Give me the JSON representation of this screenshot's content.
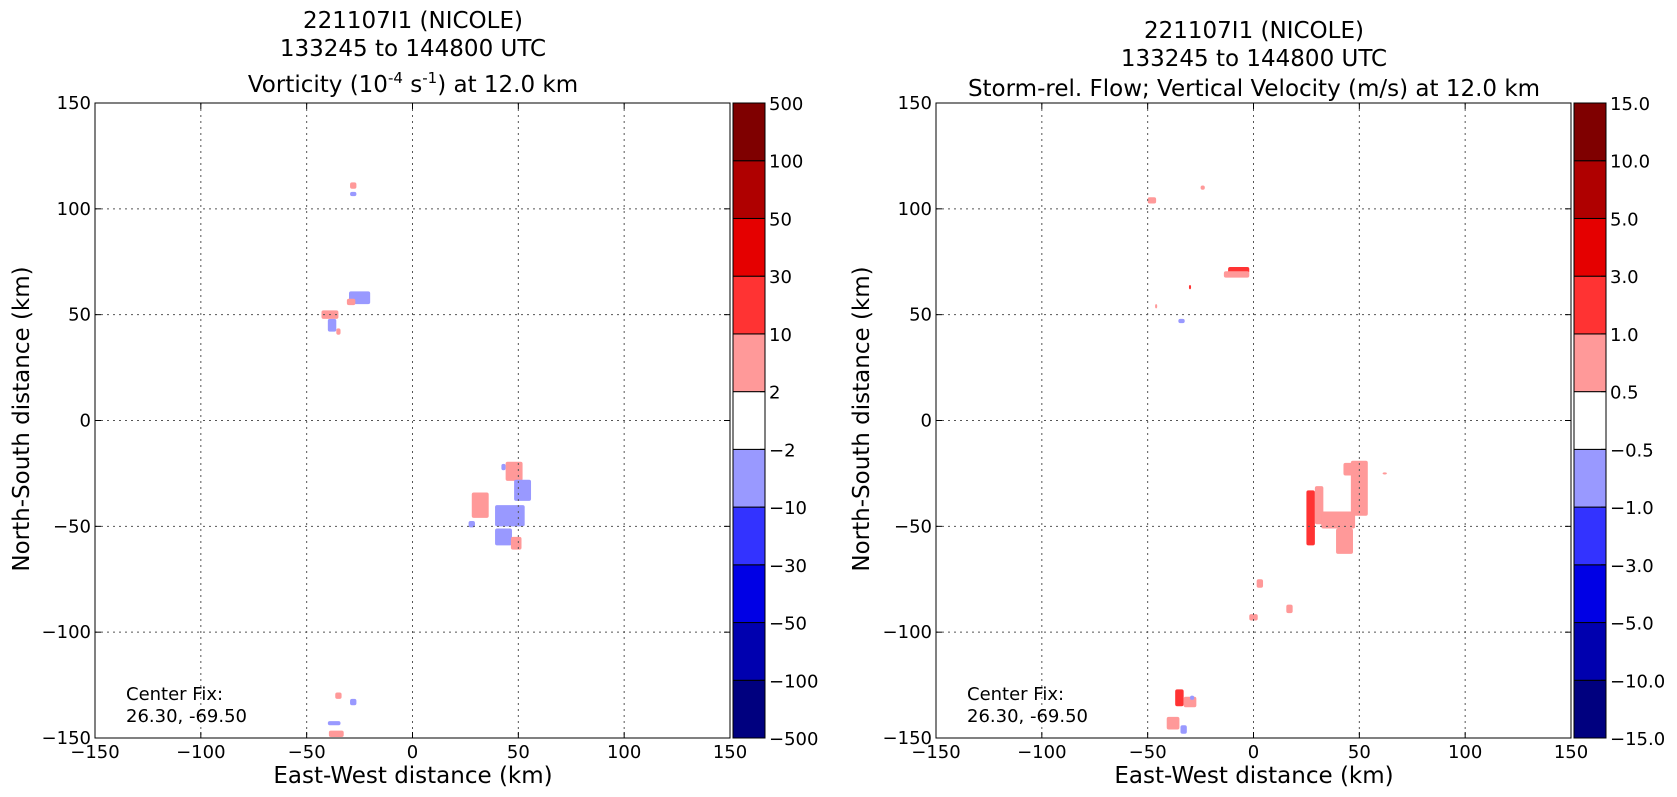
{
  "colorbar_colors": [
    "#00007f",
    "#0000af",
    "#0000e5",
    "#3333ff",
    "#9999ff",
    "#ffffff",
    "#ff9999",
    "#ff3333",
    "#e50000",
    "#af0000",
    "#7f0000"
  ],
  "panels": [
    {
      "id": "vorticity",
      "title_line1": "221107I1 (NICOLE)",
      "title_line2": "133245 to 144800 UTC",
      "title_line3_pre": "Vorticity (10",
      "title_line3_sup1": "-4",
      "title_line3_mid": " s",
      "title_line3_sup2": "-1",
      "title_line3_post": ") at 12.0 km",
      "xlabel": "East-West distance (km)",
      "ylabel": "North-South distance (km)",
      "center_fix_label": "Center Fix:",
      "center_fix_value": "26.30, -69.50",
      "colorbar_labels": [
        "500",
        "100",
        "50",
        "30",
        "10",
        "2",
        "−2",
        "−10",
        "−30",
        "−50",
        "−100",
        "−500"
      ]
    },
    {
      "id": "vertical-velocity",
      "title_line1": "221107I1 (NICOLE)",
      "title_line2": "133245 to 144800 UTC",
      "title_line3": "Storm-rel. Flow; Vertical Velocity (m/s) at 12.0 km",
      "xlabel": "East-West distance (km)",
      "ylabel": "North-South distance (km)",
      "center_fix_label": "Center Fix:",
      "center_fix_value": "26.30, -69.50",
      "colorbar_labels": [
        "15.0",
        "10.0",
        "5.0",
        "3.0",
        "1.0",
        "0.5",
        "−0.5",
        "−1.0",
        "−3.0",
        "−5.0",
        "−10.0",
        "−15.0"
      ]
    }
  ],
  "chart_data": [
    {
      "type": "heatmap",
      "title": "221107I1 (NICOLE) 133245 to 144800 UTC Vorticity (10^-4 s^-1) at 12.0 km",
      "xlabel": "East-West distance (km)",
      "ylabel": "North-South distance (km)",
      "xlim": [
        -150,
        150
      ],
      "ylim": [
        -150,
        150
      ],
      "xticks": [
        "−150",
        "−100",
        "−50",
        "0",
        "50",
        "100",
        "150"
      ],
      "yticks": [
        "−150",
        "−100",
        "−50",
        "0",
        "50",
        "100",
        "150"
      ],
      "grid": true,
      "colorbar_levels": [
        -500,
        -100,
        -50,
        -30,
        -10,
        -2,
        2,
        10,
        30,
        50,
        100,
        500
      ],
      "features": [
        {
          "x": -28,
          "y": 111,
          "w": 3,
          "h": 3,
          "level": 2
        },
        {
          "x": -28,
          "y": 107,
          "w": 3,
          "h": 2,
          "level": -2
        },
        {
          "x": -25,
          "y": 58,
          "w": 10,
          "h": 6,
          "level": -2
        },
        {
          "x": -29,
          "y": 56,
          "w": 4,
          "h": 3,
          "level": 2
        },
        {
          "x": -39,
          "y": 50,
          "w": 8,
          "h": 4,
          "level": 2
        },
        {
          "x": -38,
          "y": 45,
          "w": 4,
          "h": 6,
          "level": -2
        },
        {
          "x": -35,
          "y": 42,
          "w": 2,
          "h": 3,
          "level": 2
        },
        {
          "x": 48,
          "y": -24,
          "w": 8,
          "h": 9,
          "level": 2
        },
        {
          "x": 52,
          "y": -33,
          "w": 8,
          "h": 10,
          "level": -2
        },
        {
          "x": 32,
          "y": -40,
          "w": 8,
          "h": 12,
          "level": 2
        },
        {
          "x": 46,
          "y": -45,
          "w": 14,
          "h": 10,
          "level": -2
        },
        {
          "x": 43,
          "y": -55,
          "w": 8,
          "h": 8,
          "level": -2
        },
        {
          "x": 49,
          "y": -58,
          "w": 5,
          "h": 6,
          "level": 2
        },
        {
          "x": 28,
          "y": -49,
          "w": 3,
          "h": 3,
          "level": -2
        },
        {
          "x": 43,
          "y": -22,
          "w": 2,
          "h": 3,
          "level": -2
        },
        {
          "x": -35,
          "y": -130,
          "w": 3,
          "h": 3,
          "level": 2
        },
        {
          "x": -28,
          "y": -133,
          "w": 3,
          "h": 3,
          "level": -2
        },
        {
          "x": -37,
          "y": -143,
          "w": 6,
          "h": 2,
          "level": -2
        },
        {
          "x": -36,
          "y": -148,
          "w": 7,
          "h": 3,
          "level": 2
        }
      ]
    },
    {
      "type": "heatmap",
      "title": "221107I1 (NICOLE) 133245 to 144800 UTC Storm-rel. Flow; Vertical Velocity (m/s) at 12.0 km",
      "xlabel": "East-West distance (km)",
      "ylabel": "North-South distance (km)",
      "xlim": [
        -150,
        150
      ],
      "ylim": [
        -150,
        150
      ],
      "xticks": [
        "−150",
        "−100",
        "−50",
        "0",
        "50",
        "100",
        "150"
      ],
      "yticks": [
        "−150",
        "−100",
        "−50",
        "0",
        "50",
        "100",
        "150"
      ],
      "grid": true,
      "colorbar_levels": [
        -15.0,
        -10.0,
        -5.0,
        -3.0,
        -1.0,
        -0.5,
        0.5,
        1.0,
        3.0,
        5.0,
        10.0,
        15.0
      ],
      "features": [
        {
          "x": -48,
          "y": 104,
          "w": 4,
          "h": 3,
          "level": 0.5
        },
        {
          "x": -24,
          "y": 110,
          "w": 2,
          "h": 2,
          "level": 0.5
        },
        {
          "x": -7,
          "y": 71,
          "w": 10,
          "h": 3,
          "level": 1.0
        },
        {
          "x": -8,
          "y": 69,
          "w": 12,
          "h": 3,
          "level": 0.5
        },
        {
          "x": -30,
          "y": 63,
          "w": 1,
          "h": 2,
          "level": 1.0
        },
        {
          "x": -46,
          "y": 54,
          "w": 1,
          "h": 2,
          "level": 0.5
        },
        {
          "x": -34,
          "y": 47,
          "w": 3,
          "h": 2,
          "level": -0.5
        },
        {
          "x": 27,
          "y": -46,
          "w": 4,
          "h": 26,
          "level": 1.0
        },
        {
          "x": 31,
          "y": -40,
          "w": 4,
          "h": 18,
          "level": 0.5
        },
        {
          "x": 40,
          "y": -47,
          "w": 16,
          "h": 8,
          "level": 0.5
        },
        {
          "x": 50,
          "y": -32,
          "w": 8,
          "h": 26,
          "level": 0.5
        },
        {
          "x": 43,
          "y": -57,
          "w": 8,
          "h": 12,
          "level": 0.5
        },
        {
          "x": 45,
          "y": -23,
          "w": 5,
          "h": 6,
          "level": 0.5
        },
        {
          "x": 62,
          "y": -25,
          "w": 2,
          "h": 1,
          "level": 0.5
        },
        {
          "x": 3,
          "y": -77,
          "w": 3,
          "h": 4,
          "level": 0.5
        },
        {
          "x": 0,
          "y": -93,
          "w": 4,
          "h": 3,
          "level": 0.5
        },
        {
          "x": 17,
          "y": -89,
          "w": 3,
          "h": 4,
          "level": 0.5
        },
        {
          "x": -35,
          "y": -131,
          "w": 4,
          "h": 8,
          "level": 1.0
        },
        {
          "x": -30,
          "y": -133,
          "w": 6,
          "h": 5,
          "level": 0.5
        },
        {
          "x": -38,
          "y": -143,
          "w": 6,
          "h": 6,
          "level": 0.5
        },
        {
          "x": -29,
          "y": -131,
          "w": 2,
          "h": 2,
          "level": -0.5
        },
        {
          "x": -33,
          "y": -146,
          "w": 3,
          "h": 4,
          "level": -0.5
        }
      ]
    }
  ]
}
